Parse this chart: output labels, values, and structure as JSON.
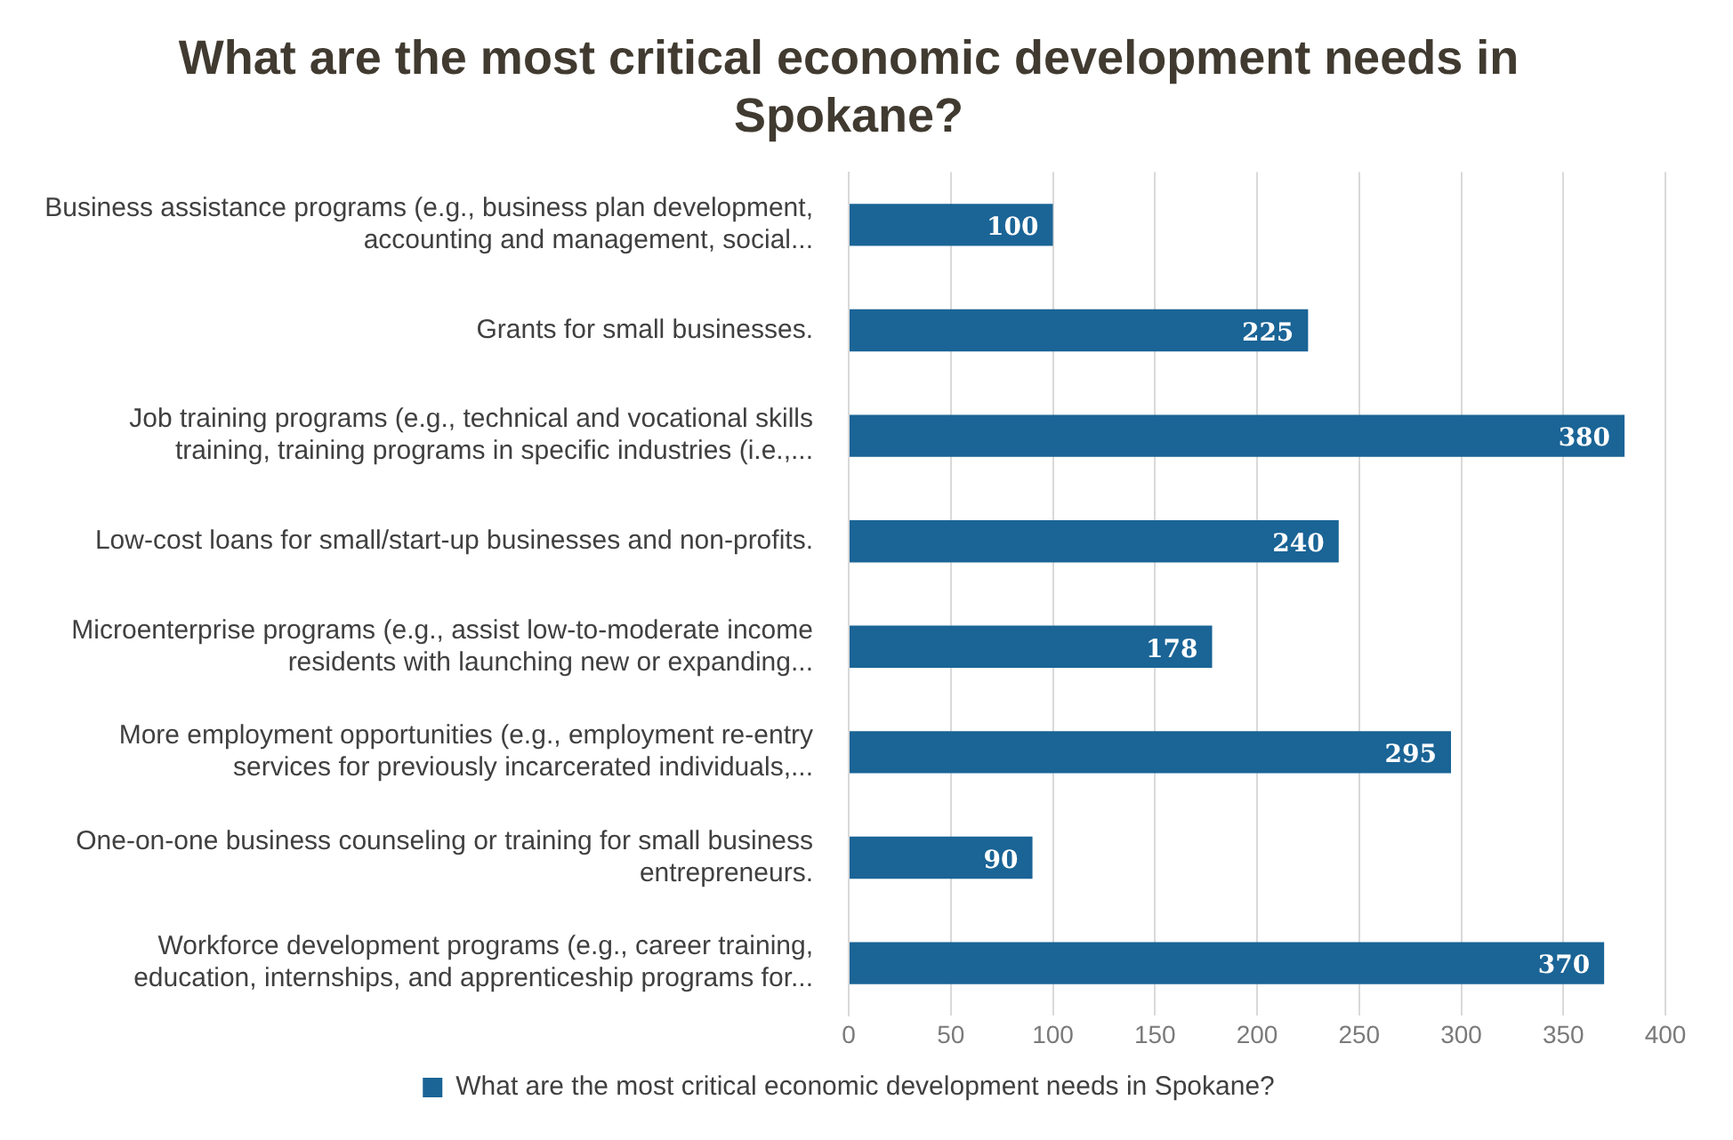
{
  "chart_data": {
    "type": "bar",
    "orientation": "horizontal",
    "title": "What are the most critical economic development needs in Spokane?",
    "categories": [
      "Business assistance programs (e.g., business plan development, accounting and management, social...",
      "Grants for small businesses.",
      "Job training programs (e.g., technical and vocational skills training, training programs in specific industries (i.e.,...",
      "Low-cost loans for small/start-up businesses and non-profits.",
      "Microenterprise programs (e.g., assist low-to-moderate income residents with launching new or expanding...",
      "More employment opportunities (e.g., employment re-entry services for previously incarcerated individuals,...",
      "One-on-one business counseling or training for small business entrepreneurs.",
      "Workforce development programs (e.g., career training, education, internships, and apprenticeship programs for..."
    ],
    "series": [
      {
        "name": "What are the most critical economic development needs in Spokane?",
        "color": "#1a6496",
        "values": [
          100,
          225,
          380,
          240,
          178,
          295,
          90,
          370
        ]
      }
    ],
    "xlim": [
      0,
      400
    ],
    "xticks": [
      0,
      50,
      100,
      150,
      200,
      250,
      300,
      350,
      400
    ],
    "grid": "x",
    "legend": "bottom",
    "data_labels": true
  }
}
